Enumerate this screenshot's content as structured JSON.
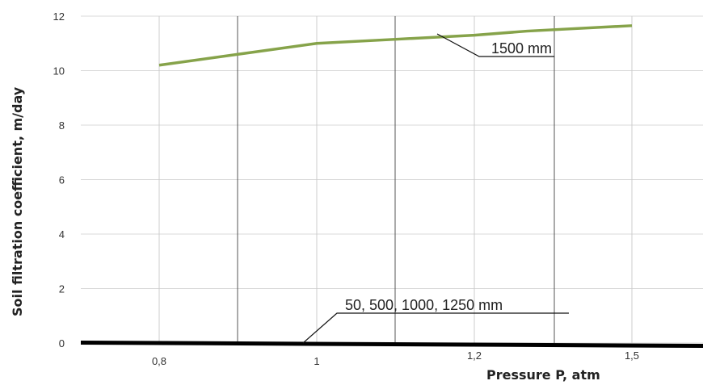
{
  "chart_data": {
    "type": "line",
    "xlabel": "Pressure P, atm",
    "ylabel": "Soil filtration coefficient, m/day",
    "ylim": [
      0,
      12
    ],
    "yticks": [
      0,
      2,
      4,
      6,
      8,
      10,
      12
    ],
    "xticks": [
      "0,8",
      "1",
      "1,2",
      "1,5"
    ],
    "x_tick_values": [
      0.8,
      1.0,
      1.2,
      1.5
    ],
    "grid": true,
    "colors": {
      "green": "#86a34a",
      "black": "#000000"
    },
    "series": [
      {
        "name": "1500 mm",
        "x": [
          0.8,
          0.9,
          1.0,
          1.1,
          1.2,
          1.3,
          1.5
        ],
        "y": [
          10.2,
          10.6,
          11.0,
          11.15,
          11.3,
          11.45,
          11.65
        ]
      },
      {
        "name": "50, 500, 1000, 1250 mm",
        "x": [
          0.8,
          1.0,
          1.2,
          1.5
        ],
        "y": [
          0,
          0,
          0,
          0
        ]
      }
    ],
    "annotations": [
      "1500 mm",
      "50, 500, 1000, 1250 mm"
    ]
  }
}
